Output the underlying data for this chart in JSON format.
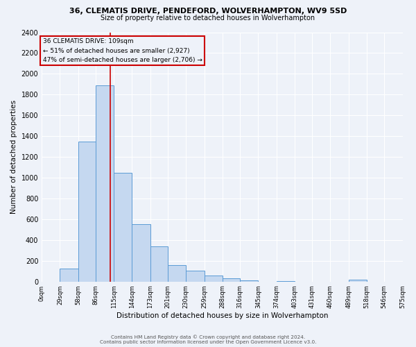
{
  "title1": "36, CLEMATIS DRIVE, PENDEFORD, WOLVERHAMPTON, WV9 5SD",
  "title2": "Size of property relative to detached houses in Wolverhampton",
  "xlabel": "Distribution of detached houses by size in Wolverhampton",
  "ylabel": "Number of detached properties",
  "bar_values": [
    0,
    125,
    1350,
    1890,
    1050,
    550,
    340,
    160,
    105,
    60,
    30,
    10,
    0,
    5,
    0,
    0,
    0,
    15,
    0,
    0
  ],
  "bin_edges": [
    0,
    29,
    58,
    86,
    115,
    144,
    173,
    201,
    230,
    259,
    288,
    316,
    345,
    374,
    403,
    431,
    460,
    489,
    518,
    546,
    575
  ],
  "tick_labels": [
    "0sqm",
    "29sqm",
    "58sqm",
    "86sqm",
    "115sqm",
    "144sqm",
    "173sqm",
    "201sqm",
    "230sqm",
    "259sqm",
    "288sqm",
    "316sqm",
    "345sqm",
    "374sqm",
    "403sqm",
    "431sqm",
    "460sqm",
    "489sqm",
    "518sqm",
    "546sqm",
    "575sqm"
  ],
  "bar_color": "#c5d8f0",
  "bar_edge_color": "#5b9bd5",
  "vline_x": 109,
  "vline_color": "#cc0000",
  "annotation_title": "36 CLEMATIS DRIVE: 109sqm",
  "annotation_line1": "← 51% of detached houses are smaller (2,927)",
  "annotation_line2": "47% of semi-detached houses are larger (2,706) →",
  "annotation_box_edge": "#cc0000",
  "ylim": [
    0,
    2400
  ],
  "yticks": [
    0,
    200,
    400,
    600,
    800,
    1000,
    1200,
    1400,
    1600,
    1800,
    2000,
    2200,
    2400
  ],
  "footer1": "Contains HM Land Registry data © Crown copyright and database right 2024.",
  "footer2": "Contains public sector information licensed under the Open Government Licence v3.0.",
  "bg_color": "#eef2f9"
}
